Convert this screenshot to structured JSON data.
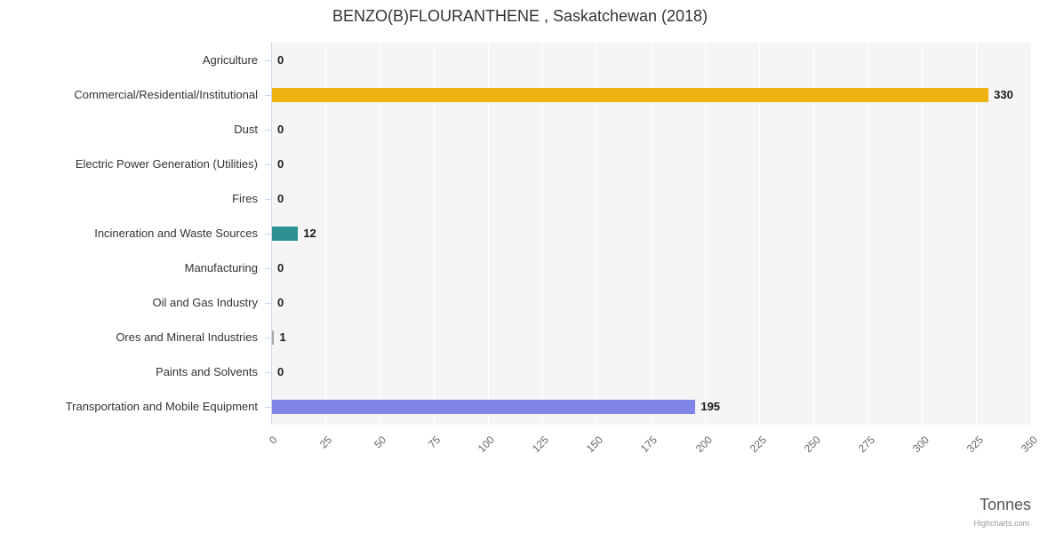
{
  "chart": {
    "title": "BENZO(B)FLOURANTHENE , Saskatchewan (2018)",
    "xaxis_title": "Tonnes",
    "credits": "Highcharts.com"
  },
  "chart_data": {
    "type": "bar",
    "orientation": "horizontal",
    "title": "BENZO(B)FLOURANTHENE , Saskatchewan (2018)",
    "xlabel": "Tonnes",
    "ylabel": "",
    "categories": [
      "Agriculture",
      "Commercial/Residential/Institutional",
      "Dust",
      "Electric Power Generation (Utilities)",
      "Fires",
      "Incineration and Waste Sources",
      "Manufacturing",
      "Oil and Gas Industry",
      "Ores and Mineral Industries",
      "Paints and Solvents",
      "Transportation and Mobile Equipment"
    ],
    "values": [
      0,
      330,
      0,
      0,
      0,
      12,
      0,
      0,
      1,
      0,
      195
    ],
    "data_labels": [
      "0",
      "330",
      "0",
      "0",
      "0",
      "12",
      "0",
      "0",
      "1",
      "0",
      "195"
    ],
    "xlim": [
      0,
      350
    ],
    "x_ticks": [
      0,
      25,
      50,
      75,
      100,
      125,
      150,
      175,
      200,
      225,
      250,
      275,
      300,
      325,
      350
    ],
    "grid": true,
    "plot_background": "#f5f5f5",
    "gridline_color": "#ffffff",
    "bar_colors": {
      "Commercial/Residential/Institutional": "#eeb211",
      "Incineration and Waste Sources": "#2b908f",
      "Transportation and Mobile Equipment": "#8085e9",
      "default": "#aaaaaa"
    }
  }
}
